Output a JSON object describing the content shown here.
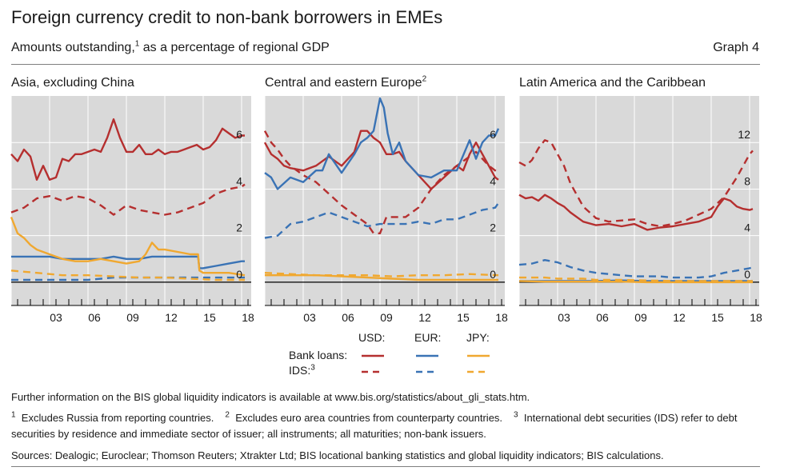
{
  "header": {
    "title": "Foreign currency credit to non-bank borrowers in EMEs",
    "subtitle_pre": "Amounts outstanding,",
    "subtitle_sup": "1",
    "subtitle_post": " as a percentage of regional GDP",
    "graph_label": "Graph 4"
  },
  "colors": {
    "usd": "#b52f2f",
    "eur": "#3a73b5",
    "jpy": "#f0a830",
    "panel_bg": "#d9d9d9",
    "grid": "#ffffff"
  },
  "legend": {
    "usd": "USD:",
    "eur": "EUR:",
    "jpy": "JPY:",
    "bank_loans": "Bank loans:",
    "ids": "IDS:",
    "ids_sup": "3"
  },
  "footnotes": {
    "info": "Further information on the BIS global liquidity indicators is available at www.bis.org/statistics/about_gli_stats.htm.",
    "n1_mark": "1",
    "n1": "Excludes Russia from reporting countries.",
    "n2_mark": "2",
    "n2": "Excludes euro area countries from counterparty countries.",
    "n3_mark": "3",
    "n3": "International debt securities (IDS) refer to debt securities by residence and immediate sector of issuer; all instruments; all maturities; non-bank issuers.",
    "sources": "Sources: Dealogic; Euroclear; Thomson Reuters; Xtrakter Ltd; BIS locational banking statistics and global liquidity indicators; BIS calculations."
  },
  "chart_data": [
    {
      "type": "line",
      "title": "Asia, excluding China",
      "title_sup": "",
      "x_ticks": [
        "03",
        "06",
        "09",
        "12",
        "15",
        "18"
      ],
      "xlim": [
        2000,
        2018.75
      ],
      "ylim": [
        -1,
        8
      ],
      "y_ticks": [
        0,
        2,
        4,
        6
      ],
      "grid": true,
      "series": [
        {
          "currency": "USD",
          "kind": "Bank loans",
          "x": [
            2000,
            2000.5,
            2001,
            2001.5,
            2002,
            2002.5,
            2003,
            2003.5,
            2004,
            2004.5,
            2005,
            2005.5,
            2006,
            2006.5,
            2007,
            2007.5,
            2008,
            2008.5,
            2009,
            2009.5,
            2010,
            2010.5,
            2011,
            2011.5,
            2012,
            2012.5,
            2013,
            2013.5,
            2014,
            2014.5,
            2015,
            2015.5,
            2016,
            2016.5,
            2017,
            2017.5,
            2018,
            2018.25
          ],
          "y": [
            5.5,
            5.2,
            5.7,
            5.4,
            4.4,
            5.0,
            4.4,
            4.5,
            5.3,
            5.2,
            5.5,
            5.5,
            5.6,
            5.7,
            5.6,
            6.2,
            7.0,
            6.2,
            5.6,
            5.6,
            5.9,
            5.5,
            5.5,
            5.7,
            5.5,
            5.6,
            5.6,
            5.7,
            5.8,
            5.9,
            5.7,
            5.8,
            6.1,
            6.6,
            6.4,
            6.2,
            6.3,
            6.3
          ]
        },
        {
          "currency": "USD",
          "kind": "IDS",
          "x": [
            2000,
            2001,
            2002,
            2003,
            2004,
            2005,
            2006,
            2007,
            2008,
            2009,
            2010,
            2011,
            2012,
            2013,
            2014,
            2015,
            2016,
            2017,
            2018,
            2018.25
          ],
          "y": [
            3.0,
            3.2,
            3.6,
            3.7,
            3.5,
            3.7,
            3.6,
            3.3,
            2.9,
            3.3,
            3.1,
            3.0,
            2.9,
            3.0,
            3.2,
            3.4,
            3.8,
            4.0,
            4.1,
            4.2
          ]
        },
        {
          "currency": "EUR",
          "kind": "Bank loans",
          "x": [
            2000,
            2001,
            2002,
            2003,
            2004,
            2005,
            2006,
            2007,
            2008,
            2009,
            2010,
            2011,
            2012,
            2013,
            2014,
            2014.6,
            2014.7,
            2015,
            2016,
            2017,
            2018,
            2018.25
          ],
          "y": [
            1.1,
            1.1,
            1.1,
            1.1,
            1.0,
            1.0,
            1.0,
            1.0,
            1.1,
            1.0,
            1.0,
            1.1,
            1.1,
            1.1,
            1.1,
            1.1,
            0.6,
            0.6,
            0.7,
            0.8,
            0.9,
            0.9
          ]
        },
        {
          "currency": "EUR",
          "kind": "IDS",
          "x": [
            2000,
            2002,
            2004,
            2006,
            2008,
            2010,
            2012,
            2014,
            2016,
            2018.25
          ],
          "y": [
            0.1,
            0.1,
            0.1,
            0.1,
            0.2,
            0.2,
            0.2,
            0.2,
            0.2,
            0.2
          ]
        },
        {
          "currency": "JPY",
          "kind": "Bank loans",
          "x": [
            2000,
            2000.5,
            2001,
            2001.5,
            2002,
            2003,
            2004,
            2005,
            2006,
            2007,
            2008,
            2009,
            2010,
            2010.5,
            2011,
            2011.5,
            2012,
            2013,
            2014,
            2014.6,
            2014.7,
            2015,
            2016,
            2017,
            2018.25
          ],
          "y": [
            2.8,
            2.1,
            1.9,
            1.6,
            1.4,
            1.2,
            1.0,
            0.9,
            0.9,
            1.0,
            0.9,
            0.8,
            0.9,
            1.2,
            1.7,
            1.4,
            1.4,
            1.3,
            1.2,
            1.2,
            0.5,
            0.4,
            0.4,
            0.4,
            0.3
          ]
        },
        {
          "currency": "JPY",
          "kind": "IDS",
          "x": [
            2000,
            2001,
            2002,
            2003,
            2004,
            2005,
            2006,
            2008,
            2010,
            2012,
            2014,
            2016,
            2018.25
          ],
          "y": [
            0.5,
            0.45,
            0.4,
            0.35,
            0.3,
            0.3,
            0.3,
            0.25,
            0.2,
            0.2,
            0.15,
            0.1,
            0.1
          ]
        }
      ]
    },
    {
      "type": "line",
      "title": "Central and eastern Europe",
      "title_sup": "2",
      "x_ticks": [
        "03",
        "06",
        "09",
        "12",
        "15",
        "18"
      ],
      "xlim": [
        2000,
        2018.75
      ],
      "ylim": [
        -1,
        8
      ],
      "y_ticks": [
        0,
        2,
        4,
        6
      ],
      "grid": true,
      "series": [
        {
          "currency": "USD",
          "kind": "Bank loans",
          "x": [
            2000,
            2000.5,
            2001,
            2001.5,
            2002,
            2003,
            2004,
            2005,
            2006,
            2007,
            2007.5,
            2008,
            2008.5,
            2009,
            2009.5,
            2010,
            2010.5,
            2011,
            2012,
            2013,
            2014,
            2015,
            2015.5,
            2016,
            2016.5,
            2017,
            2017.5,
            2018,
            2018.25
          ],
          "y": [
            6.0,
            5.5,
            5.3,
            5.0,
            4.9,
            4.8,
            5.0,
            5.4,
            5.0,
            5.6,
            6.5,
            6.5,
            6.2,
            6.0,
            5.5,
            5.5,
            5.6,
            5.2,
            4.6,
            4.0,
            4.5,
            5.0,
            4.8,
            5.5,
            6.0,
            5.5,
            5.0,
            4.5,
            4.4
          ]
        },
        {
          "currency": "USD",
          "kind": "IDS",
          "x": [
            2000,
            2000.5,
            2001,
            2001.5,
            2002,
            2003,
            2004,
            2005,
            2006,
            2007,
            2008,
            2008.5,
            2009,
            2009.5,
            2010,
            2011,
            2012,
            2013,
            2014,
            2015,
            2016,
            2016.5,
            2017,
            2017.5,
            2018,
            2018.25
          ],
          "y": [
            6.5,
            6.0,
            5.7,
            5.3,
            5.0,
            4.6,
            4.3,
            3.8,
            3.3,
            2.9,
            2.5,
            2.1,
            2.1,
            2.8,
            2.8,
            2.8,
            3.2,
            4.0,
            4.6,
            5.0,
            5.4,
            5.6,
            5.3,
            5.0,
            4.8,
            4.7
          ]
        },
        {
          "currency": "EUR",
          "kind": "Bank loans",
          "x": [
            2000,
            2000.5,
            2001,
            2002,
            2003,
            2004,
            2004.5,
            2005,
            2006,
            2007,
            2007.5,
            2008,
            2008.5,
            2009,
            2009.3,
            2009.6,
            2010,
            2010.5,
            2011,
            2012,
            2013,
            2014,
            2015,
            2016,
            2016.5,
            2017,
            2017.5,
            2018,
            2018.25
          ],
          "y": [
            4.7,
            4.5,
            4.0,
            4.5,
            4.3,
            4.8,
            4.8,
            5.5,
            4.7,
            5.5,
            6.0,
            6.2,
            6.5,
            7.9,
            7.5,
            6.4,
            5.5,
            6.0,
            5.2,
            4.6,
            4.5,
            4.8,
            4.8,
            6.1,
            5.3,
            6.0,
            6.3,
            6.3,
            6.6
          ]
        },
        {
          "currency": "EUR",
          "kind": "IDS",
          "x": [
            2000,
            2001,
            2002,
            2003,
            2004,
            2005,
            2006,
            2007,
            2008,
            2009,
            2010,
            2011,
            2012,
            2013,
            2014,
            2015,
            2016,
            2017,
            2018,
            2018.25
          ],
          "y": [
            1.9,
            2.0,
            2.5,
            2.6,
            2.8,
            3.0,
            2.8,
            2.6,
            2.4,
            2.5,
            2.5,
            2.5,
            2.6,
            2.5,
            2.7,
            2.7,
            2.9,
            3.1,
            3.2,
            3.4
          ]
        },
        {
          "currency": "JPY",
          "kind": "Bank loans",
          "x": [
            2000,
            2002,
            2004,
            2006,
            2008,
            2010,
            2012,
            2014,
            2016,
            2018.25
          ],
          "y": [
            0.3,
            0.3,
            0.3,
            0.25,
            0.2,
            0.15,
            0.1,
            0.1,
            0.1,
            0.1
          ]
        },
        {
          "currency": "JPY",
          "kind": "IDS",
          "x": [
            2000,
            2002,
            2004,
            2006,
            2008,
            2010,
            2012,
            2014,
            2016,
            2018.25
          ],
          "y": [
            0.4,
            0.35,
            0.3,
            0.3,
            0.3,
            0.25,
            0.3,
            0.3,
            0.35,
            0.3
          ]
        }
      ]
    },
    {
      "type": "line",
      "title": "Latin America and the Caribbean",
      "title_sup": "",
      "x_ticks": [
        "03",
        "06",
        "09",
        "12",
        "15",
        "18"
      ],
      "xlim": [
        2000,
        2018.75
      ],
      "ylim": [
        -2,
        16
      ],
      "y_ticks": [
        0,
        4,
        8,
        12
      ],
      "grid": true,
      "series": [
        {
          "currency": "USD",
          "kind": "Bank loans",
          "x": [
            2000,
            2000.5,
            2001,
            2001.5,
            2002,
            2002.5,
            2003,
            2003.5,
            2004,
            2005,
            2006,
            2007,
            2008,
            2009,
            2010,
            2011,
            2012,
            2013,
            2014,
            2015,
            2015.5,
            2016,
            2016.5,
            2017,
            2017.5,
            2018,
            2018.25
          ],
          "y": [
            7.5,
            7.2,
            7.3,
            7.0,
            7.5,
            7.2,
            6.8,
            6.5,
            6.0,
            5.2,
            4.9,
            5.0,
            4.8,
            5.0,
            4.5,
            4.7,
            4.8,
            5.0,
            5.2,
            5.6,
            6.5,
            7.2,
            7.0,
            6.5,
            6.3,
            6.2,
            6.3
          ]
        },
        {
          "currency": "USD",
          "kind": "IDS",
          "x": [
            2000,
            2000.5,
            2001,
            2001.5,
            2002,
            2002.5,
            2003,
            2003.5,
            2004,
            2005,
            2006,
            2007,
            2008,
            2009,
            2010,
            2011,
            2012,
            2013,
            2014,
            2015,
            2016,
            2017,
            2018,
            2018.25
          ],
          "y": [
            10.3,
            10.0,
            10.5,
            11.5,
            12.2,
            12.0,
            11.0,
            10.0,
            8.5,
            6.5,
            5.5,
            5.2,
            5.3,
            5.4,
            5.0,
            4.8,
            5.0,
            5.3,
            5.8,
            6.3,
            7.3,
            9.0,
            11.0,
            11.3
          ]
        },
        {
          "currency": "EUR",
          "kind": "Bank loans",
          "x": [
            2000,
            2002,
            2004,
            2006,
            2008,
            2010,
            2012,
            2014,
            2016,
            2018.25
          ],
          "y": [
            0.1,
            0.1,
            0.1,
            0.1,
            0.15,
            0.1,
            0.1,
            0.1,
            0.1,
            0.1
          ]
        },
        {
          "currency": "EUR",
          "kind": "IDS",
          "x": [
            2000,
            2001,
            2002,
            2003,
            2004,
            2005,
            2006,
            2007,
            2008,
            2009,
            2010,
            2011,
            2012,
            2013,
            2014,
            2015,
            2016,
            2017,
            2018,
            2018.25
          ],
          "y": [
            1.5,
            1.6,
            1.9,
            1.7,
            1.3,
            1.0,
            0.8,
            0.7,
            0.6,
            0.5,
            0.5,
            0.5,
            0.4,
            0.4,
            0.4,
            0.5,
            0.8,
            1.0,
            1.2,
            1.3
          ]
        },
        {
          "currency": "JPY",
          "kind": "Bank loans",
          "x": [
            2000,
            2002,
            2004,
            2006,
            2008,
            2010,
            2012,
            2014,
            2016,
            2018.25
          ],
          "y": [
            0.1,
            0.05,
            0.05,
            0.05,
            0.05,
            0.0,
            0.0,
            0.0,
            0.0,
            0.0
          ]
        },
        {
          "currency": "JPY",
          "kind": "IDS",
          "x": [
            2000,
            2001,
            2002,
            2003,
            2004,
            2005,
            2006,
            2008,
            2010,
            2012,
            2014,
            2016,
            2018.25
          ],
          "y": [
            0.4,
            0.4,
            0.4,
            0.3,
            0.3,
            0.3,
            0.2,
            0.2,
            0.15,
            0.1,
            0.1,
            0.1,
            0.1
          ]
        }
      ]
    }
  ]
}
